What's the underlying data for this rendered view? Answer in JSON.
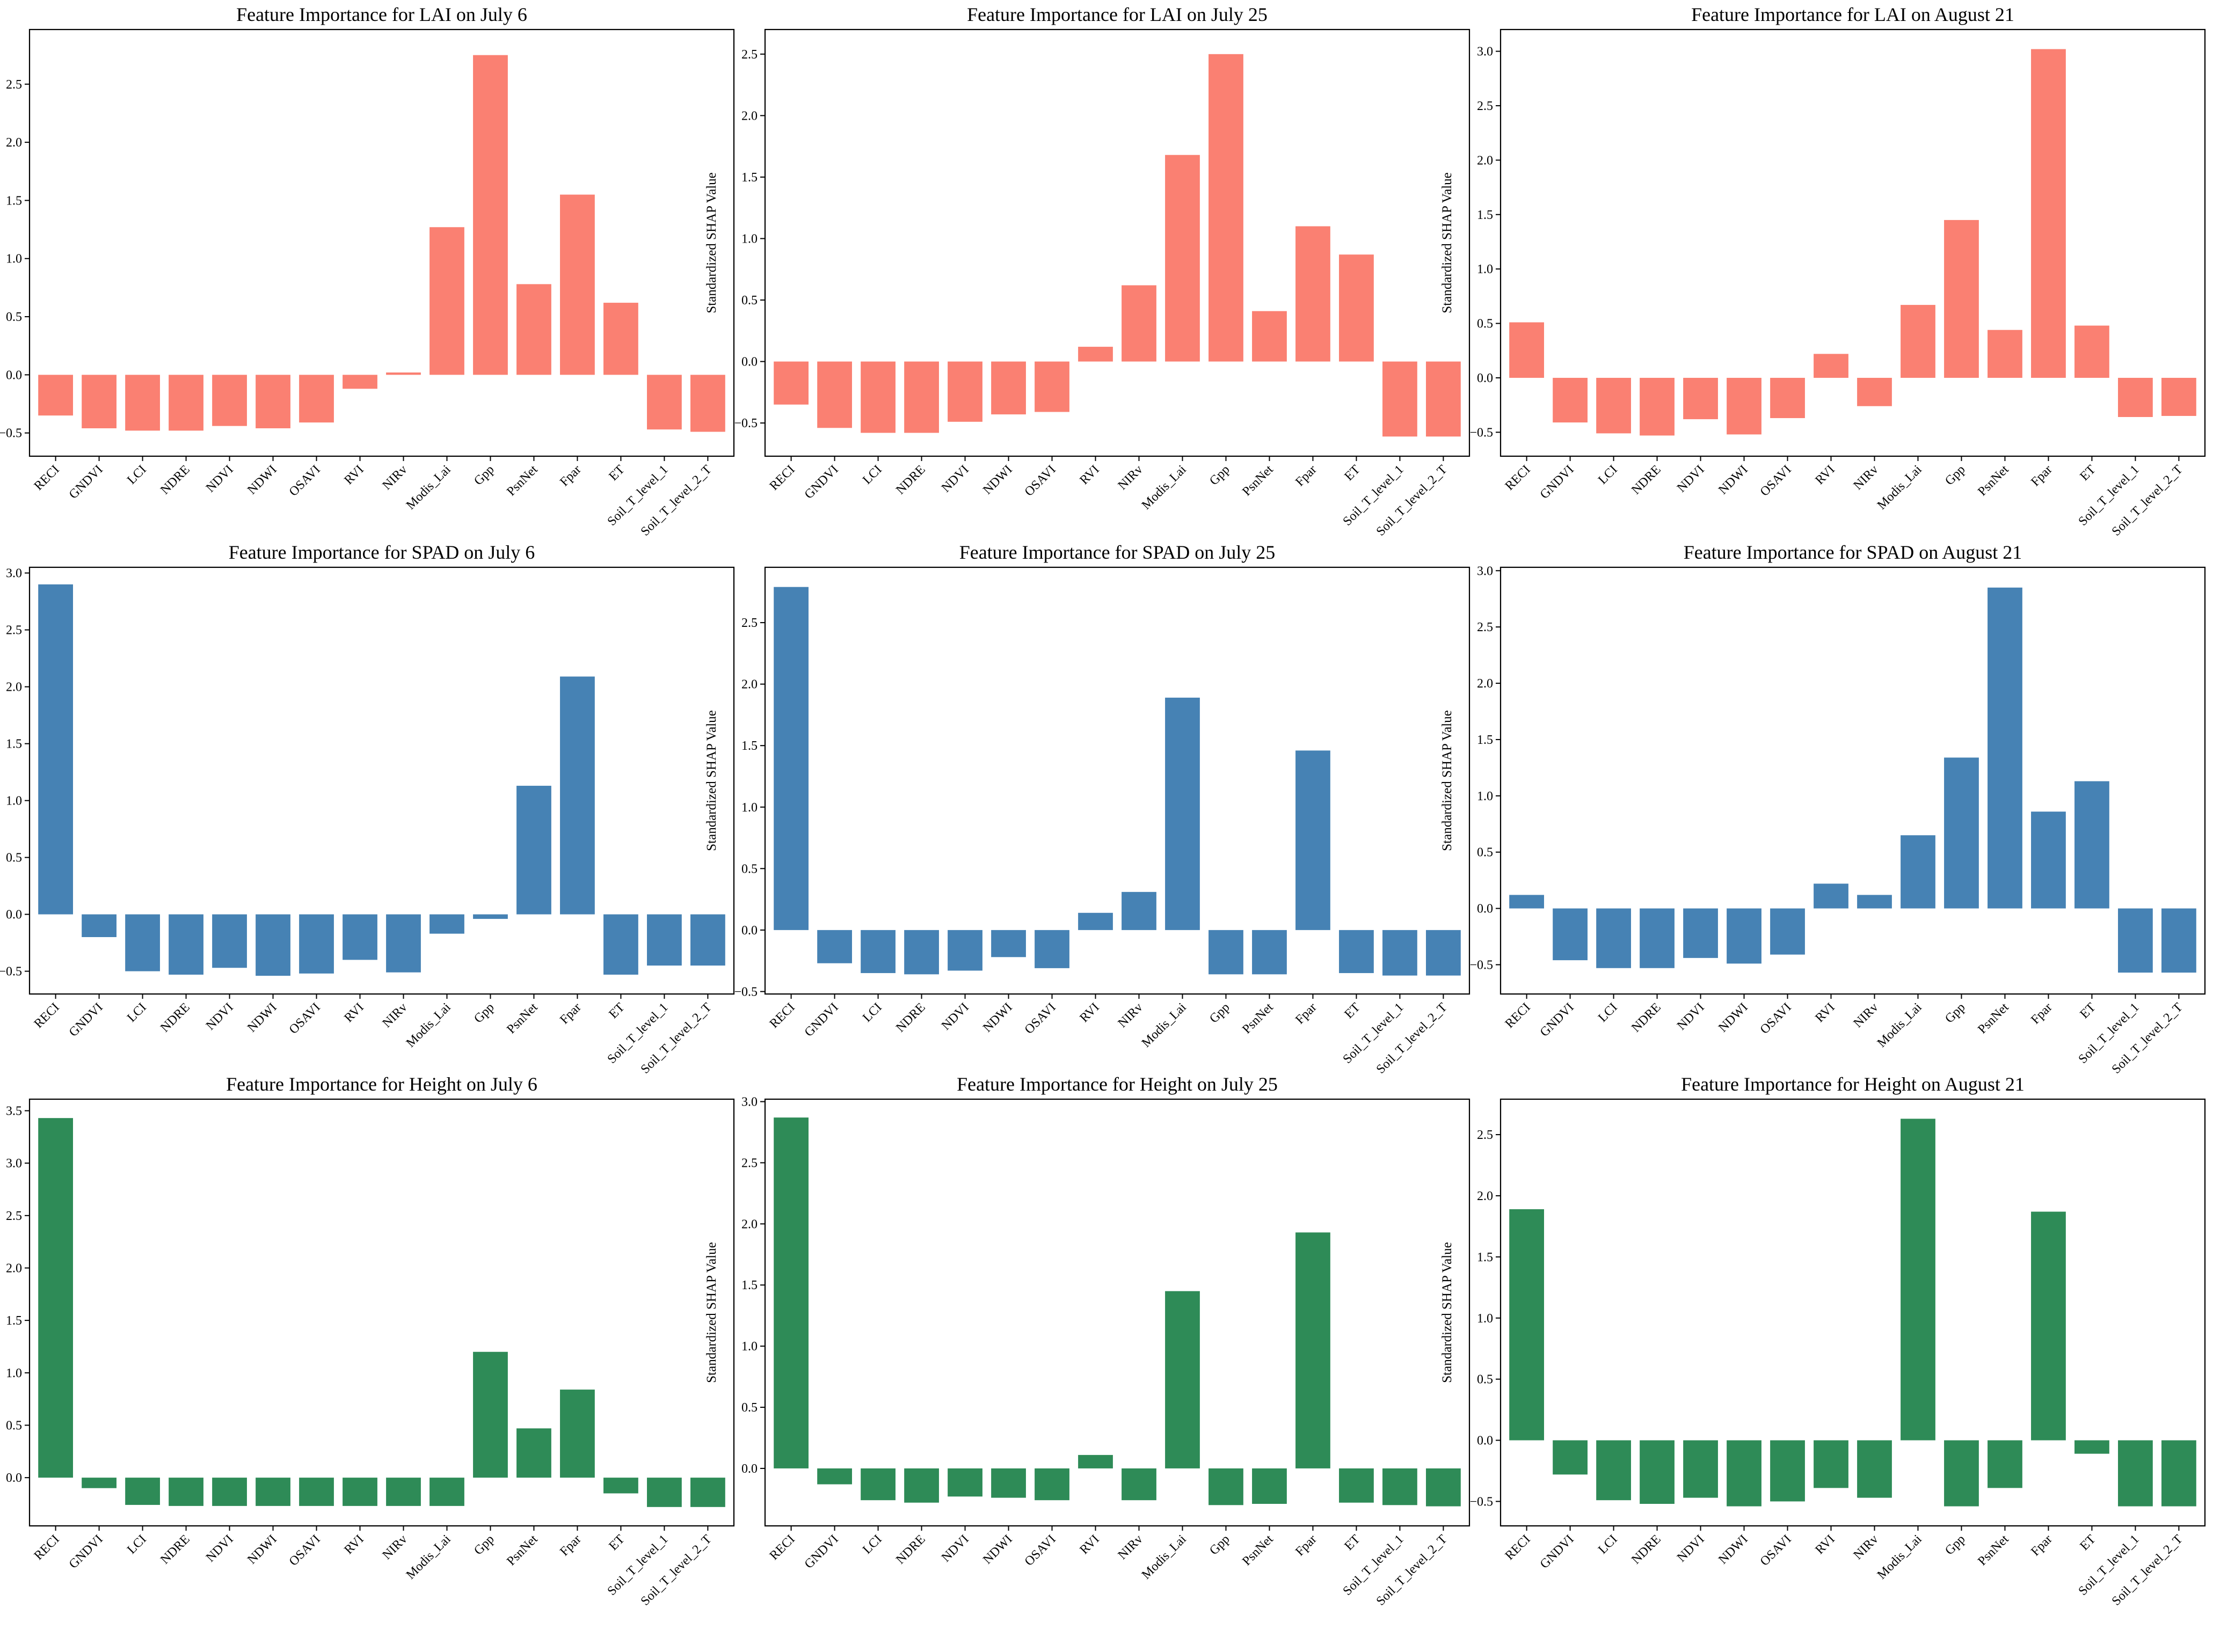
{
  "chart_data": [
    {
      "type": "bar",
      "title": "Feature Importance for LAI on July 6",
      "ylabel": "Standardized SHAP Value",
      "color": "#fa8072",
      "categories": [
        "RECI",
        "GNDVI",
        "LCI",
        "NDRE",
        "NDVI",
        "NDWI",
        "OSAVI",
        "RVI",
        "NIRv",
        "Modis_Lai",
        "Gpp",
        "PsnNet",
        "Fpar",
        "ET",
        "Soil_T_level_1",
        "Soil_T_level_2_T"
      ],
      "values": [
        -0.35,
        -0.46,
        -0.48,
        -0.48,
        -0.44,
        -0.46,
        -0.41,
        -0.12,
        0.02,
        1.27,
        2.75,
        0.78,
        1.55,
        0.62,
        -0.47,
        -0.49
      ],
      "ylim": [
        -0.7,
        2.97
      ],
      "yticks": [
        -0.5,
        0.0,
        0.5,
        1.0,
        1.5,
        2.0,
        2.5
      ],
      "yticklabels": [
        "−0.5",
        "0.0",
        "0.5",
        "1.0",
        "1.5",
        "2.0",
        "2.5"
      ]
    },
    {
      "type": "bar",
      "title": "Feature Importance for LAI on July 25",
      "ylabel": "Standardized SHAP Value",
      "color": "#fa8072",
      "categories": [
        "RECI",
        "GNDVI",
        "LCI",
        "NDRE",
        "NDVI",
        "NDWI",
        "OSAVI",
        "RVI",
        "NIRv",
        "Modis_Lai",
        "Gpp",
        "PsnNet",
        "Fpar",
        "ET",
        "Soil_T_level_1",
        "Soil_T_level_2_T"
      ],
      "values": [
        -0.35,
        -0.54,
        -0.58,
        -0.58,
        -0.49,
        -0.43,
        -0.41,
        0.12,
        0.62,
        1.68,
        2.5,
        0.41,
        1.1,
        0.87,
        -0.61,
        -0.61
      ],
      "ylim": [
        -0.77,
        2.7
      ],
      "yticks": [
        -0.5,
        0.0,
        0.5,
        1.0,
        1.5,
        2.0,
        2.5
      ],
      "yticklabels": [
        "−0.5",
        "0.0",
        "0.5",
        "1.0",
        "1.5",
        "2.0",
        "2.5"
      ]
    },
    {
      "type": "bar",
      "title": "Feature Importance for LAI on August 21",
      "ylabel": "Standardized SHAP Value",
      "color": "#fa8072",
      "categories": [
        "RECI",
        "GNDVI",
        "LCI",
        "NDRE",
        "NDVI",
        "NDWI",
        "OSAVI",
        "RVI",
        "NIRv",
        "Modis_Lai",
        "Gpp",
        "PsnNet",
        "Fpar",
        "ET",
        "Soil_T_level_1",
        "Soil_T_level_2_T"
      ],
      "values": [
        0.51,
        -0.41,
        -0.51,
        -0.53,
        -0.38,
        -0.52,
        -0.37,
        0.22,
        -0.26,
        0.67,
        1.45,
        0.44,
        3.02,
        0.48,
        -0.36,
        -0.35
      ],
      "ylim": [
        -0.72,
        3.2
      ],
      "yticks": [
        -0.5,
        0.0,
        0.5,
        1.0,
        1.5,
        2.0,
        2.5,
        3.0
      ],
      "yticklabels": [
        "−0.5",
        "0.0",
        "0.5",
        "1.0",
        "1.5",
        "2.0",
        "2.5",
        "3.0"
      ]
    },
    {
      "type": "bar",
      "title": "Feature Importance for SPAD on July 6",
      "ylabel": "Standardized SHAP Value",
      "color": "#4682b4",
      "categories": [
        "RECI",
        "GNDVI",
        "LCI",
        "NDRE",
        "NDVI",
        "NDWI",
        "OSAVI",
        "RVI",
        "NIRv",
        "Modis_Lai",
        "Gpp",
        "PsnNet",
        "Fpar",
        "ET",
        "Soil_T_level_1",
        "Soil_T_level_2_T"
      ],
      "values": [
        2.9,
        -0.2,
        -0.5,
        -0.53,
        -0.47,
        -0.54,
        -0.52,
        -0.4,
        -0.51,
        -0.17,
        -0.04,
        1.13,
        2.09,
        -0.53,
        -0.45,
        -0.45
      ],
      "ylim": [
        -0.7,
        3.05
      ],
      "yticks": [
        -0.5,
        0.0,
        0.5,
        1.0,
        1.5,
        2.0,
        2.5,
        3.0
      ],
      "yticklabels": [
        "−0.5",
        "0.0",
        "0.5",
        "1.0",
        "1.5",
        "2.0",
        "2.5",
        "3.0"
      ]
    },
    {
      "type": "bar",
      "title": "Feature Importance for SPAD on July 25",
      "ylabel": "Standardized SHAP Value",
      "color": "#4682b4",
      "categories": [
        "RECI",
        "GNDVI",
        "LCI",
        "NDRE",
        "NDVI",
        "NDWI",
        "OSAVI",
        "RVI",
        "NIRv",
        "Modis_Lai",
        "Gpp",
        "PsnNet",
        "Fpar",
        "ET",
        "Soil_T_level_1",
        "Soil_T_level_2_T"
      ],
      "values": [
        2.79,
        -0.27,
        -0.35,
        -0.36,
        -0.33,
        -0.22,
        -0.31,
        0.14,
        0.31,
        1.89,
        -0.36,
        -0.36,
        1.46,
        -0.35,
        -0.37,
        -0.37
      ],
      "ylim": [
        -0.52,
        2.95
      ],
      "yticks": [
        -0.5,
        0.0,
        0.5,
        1.0,
        1.5,
        2.0,
        2.5
      ],
      "yticklabels": [
        "−0.5",
        "0.0",
        "0.5",
        "1.0",
        "1.5",
        "2.0",
        "2.5"
      ]
    },
    {
      "type": "bar",
      "title": "Feature Importance for SPAD on August 21",
      "ylabel": "Standardized SHAP Value",
      "color": "#4682b4",
      "categories": [
        "RECI",
        "GNDVI",
        "LCI",
        "NDRE",
        "NDVI",
        "NDWI",
        "OSAVI",
        "RVI",
        "NIRv",
        "Modis_Lai",
        "Gpp",
        "PsnNet",
        "Fpar",
        "ET",
        "Soil_T_level_1",
        "Soil_T_level_2_T"
      ],
      "values": [
        0.12,
        -0.46,
        -0.53,
        -0.53,
        -0.44,
        -0.49,
        -0.41,
        0.22,
        0.12,
        0.65,
        1.34,
        2.85,
        0.86,
        1.13,
        -0.57,
        -0.57
      ],
      "ylim": [
        -0.76,
        3.03
      ],
      "yticks": [
        -0.5,
        0.0,
        0.5,
        1.0,
        1.5,
        2.0,
        2.5,
        3.0
      ],
      "yticklabels": [
        "−0.5",
        "0.0",
        "0.5",
        "1.0",
        "1.5",
        "2.0",
        "2.5",
        "3.0"
      ]
    },
    {
      "type": "bar",
      "title": "Feature Importance for Height on July 6",
      "ylabel": "Standardized SHAP Value",
      "color": "#2e8b57",
      "categories": [
        "RECI",
        "GNDVI",
        "LCI",
        "NDRE",
        "NDVI",
        "NDWI",
        "OSAVI",
        "RVI",
        "NIRv",
        "Modis_Lai",
        "Gpp",
        "PsnNet",
        "Fpar",
        "ET",
        "Soil_T_level_1",
        "Soil_T_level_2_T"
      ],
      "values": [
        3.43,
        -0.1,
        -0.26,
        -0.27,
        -0.27,
        -0.27,
        -0.27,
        -0.27,
        -0.27,
        -0.27,
        1.2,
        0.47,
        0.84,
        -0.15,
        -0.28,
        -0.28
      ],
      "ylim": [
        -0.46,
        3.61
      ],
      "yticks": [
        0.0,
        0.5,
        1.0,
        1.5,
        2.0,
        2.5,
        3.0,
        3.5
      ],
      "yticklabels": [
        "0.0",
        "0.5",
        "1.0",
        "1.5",
        "2.0",
        "2.5",
        "3.0",
        "3.5"
      ]
    },
    {
      "type": "bar",
      "title": "Feature Importance for Height on July 25",
      "ylabel": "Standardized SHAP Value",
      "color": "#2e8b57",
      "categories": [
        "RECI",
        "GNDVI",
        "LCI",
        "NDRE",
        "NDVI",
        "NDWI",
        "OSAVI",
        "RVI",
        "NIRv",
        "Modis_Lai",
        "Gpp",
        "PsnNet",
        "Fpar",
        "ET",
        "Soil_T_level_1",
        "Soil_T_level_2_T"
      ],
      "values": [
        2.87,
        -0.13,
        -0.26,
        -0.28,
        -0.23,
        -0.24,
        -0.26,
        0.11,
        -0.26,
        1.45,
        -0.3,
        -0.29,
        1.93,
        -0.28,
        -0.3,
        -0.31
      ],
      "ylim": [
        -0.47,
        3.02
      ],
      "yticks": [
        0.0,
        0.5,
        1.0,
        1.5,
        2.0,
        2.5,
        3.0
      ],
      "yticklabels": [
        "0.0",
        "0.5",
        "1.0",
        "1.5",
        "2.0",
        "2.5",
        "3.0"
      ]
    },
    {
      "type": "bar",
      "title": "Feature Importance for Height on August 21",
      "ylabel": "Standardized SHAP Value",
      "color": "#2e8b57",
      "categories": [
        "RECI",
        "GNDVI",
        "LCI",
        "NDRE",
        "NDVI",
        "NDWI",
        "OSAVI",
        "RVI",
        "NIRv",
        "Modis_Lai",
        "Gpp",
        "PsnNet",
        "Fpar",
        "ET",
        "Soil_T_level_1",
        "Soil_T_level_2_T"
      ],
      "values": [
        1.89,
        -0.28,
        -0.49,
        -0.52,
        -0.47,
        -0.54,
        -0.5,
        -0.39,
        -0.47,
        2.63,
        -0.54,
        -0.39,
        1.87,
        -0.11,
        -0.54,
        -0.54
      ],
      "ylim": [
        -0.7,
        2.79
      ],
      "yticks": [
        -0.5,
        0.0,
        0.5,
        1.0,
        1.5,
        2.0,
        2.5
      ],
      "yticklabels": [
        "−0.5",
        "0.0",
        "0.5",
        "1.0",
        "1.5",
        "2.0",
        "2.5"
      ]
    }
  ]
}
